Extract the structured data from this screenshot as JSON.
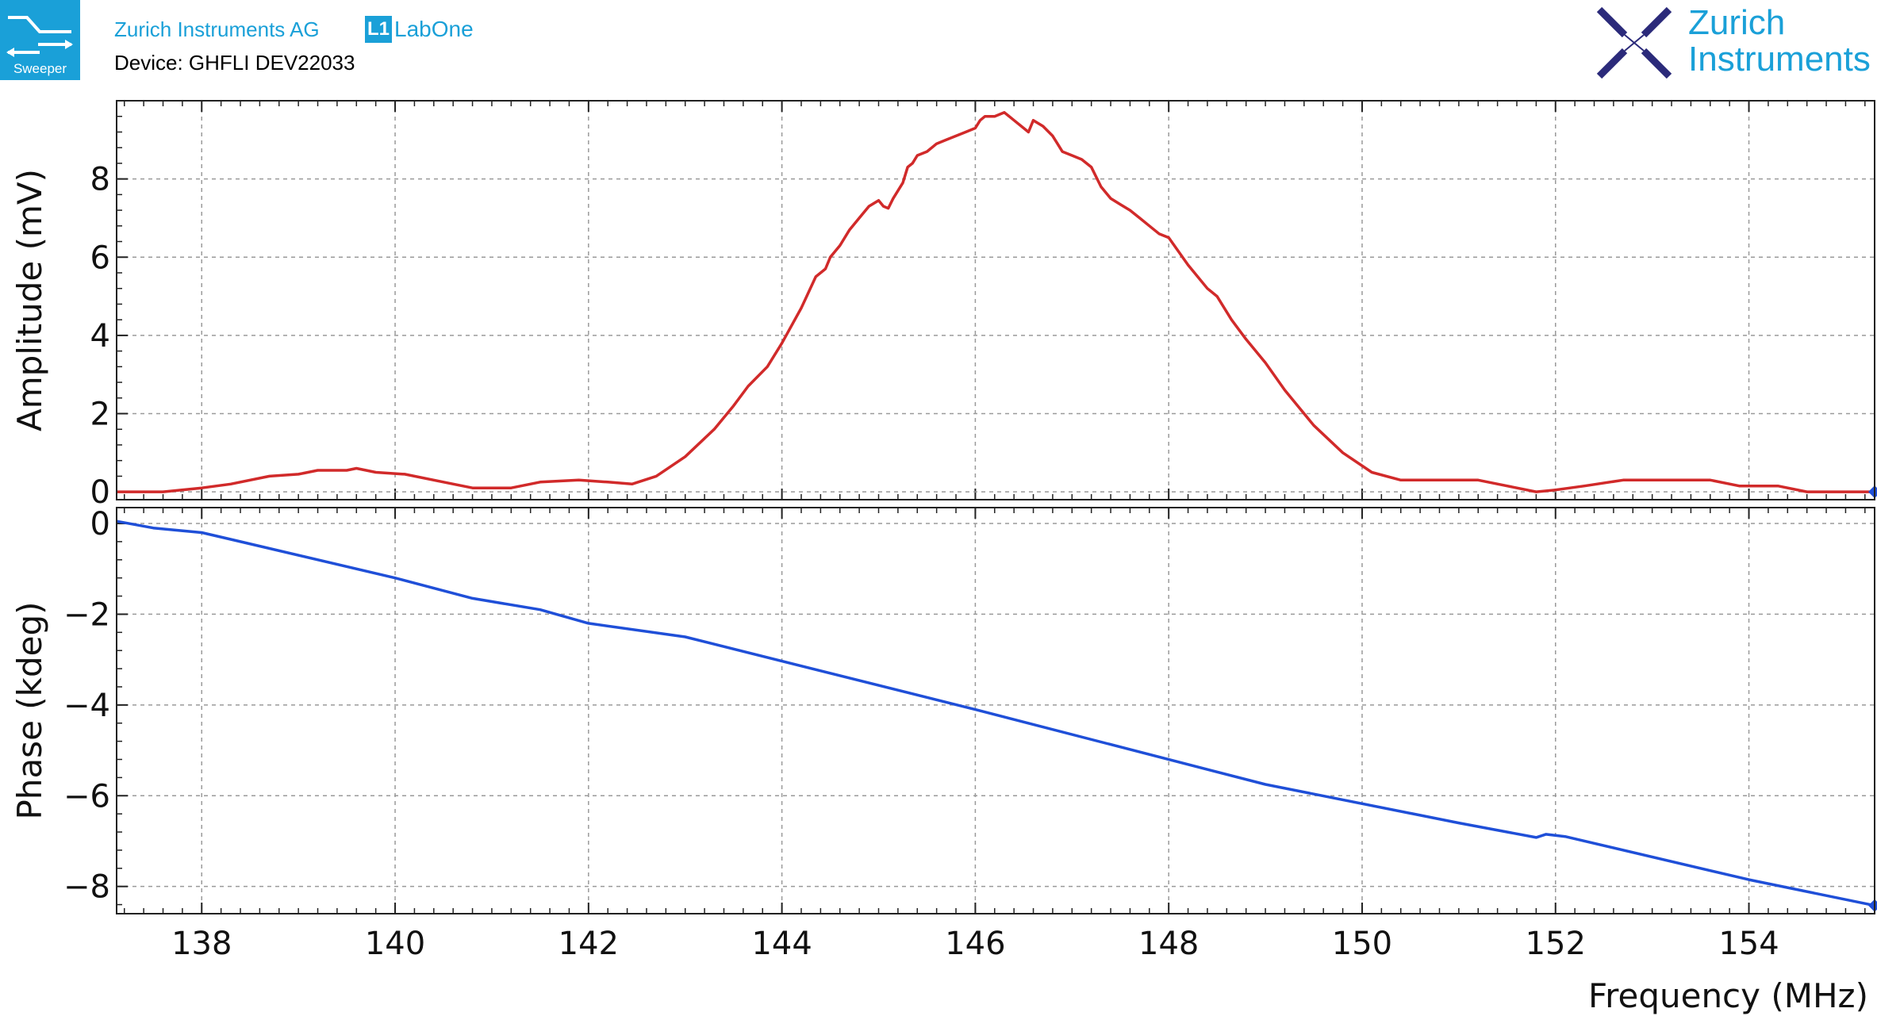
{
  "header": {
    "badge_label": "Sweeper",
    "company": "Zurich Instruments AG",
    "product_mark": "L1",
    "product": "LabOne",
    "device": "Device: GHFLI DEV22033",
    "brand_line1": "Zurich",
    "brand_line2": "Instruments",
    "brand_color": "#1aa0d8",
    "logo_color": "#2b2a7a"
  },
  "chart_data": [
    {
      "type": "line",
      "ylabel": "Amplitude (mV)",
      "xlabel": "",
      "xlim": [
        137.12,
        155.3
      ],
      "ylim": [
        -0.2,
        10.0
      ],
      "xticks": [
        138,
        140,
        142,
        144,
        146,
        148,
        150,
        152,
        154
      ],
      "yticks": [
        0,
        2,
        4,
        6,
        8
      ],
      "grid": true,
      "series": [
        {
          "color": "#d12a2a",
          "x": [
            137.12,
            137.6,
            138.0,
            138.3,
            138.7,
            139.0,
            139.2,
            139.5,
            139.6,
            139.8,
            140.1,
            140.5,
            140.8,
            141.2,
            141.5,
            141.9,
            142.2,
            142.45,
            142.7,
            143.0,
            143.3,
            143.5,
            143.65,
            143.85,
            144.0,
            144.2,
            144.35,
            144.45,
            144.5,
            144.6,
            144.7,
            144.8,
            144.9,
            145.0,
            145.05,
            145.1,
            145.15,
            145.2,
            145.25,
            145.3,
            145.35,
            145.4,
            145.5,
            145.6,
            145.7,
            145.8,
            145.9,
            146.0,
            146.05,
            146.1,
            146.2,
            146.3,
            146.4,
            146.5,
            146.55,
            146.6,
            146.7,
            146.8,
            146.85,
            146.9,
            147.0,
            147.1,
            147.2,
            147.3,
            147.4,
            147.5,
            147.6,
            147.7,
            147.8,
            147.9,
            148.0,
            148.2,
            148.4,
            148.5,
            148.65,
            148.8,
            149.0,
            149.2,
            149.5,
            149.8,
            150.1,
            150.4,
            150.8,
            151.2,
            151.5,
            151.8,
            152.0,
            152.3,
            152.7,
            153.0,
            153.3,
            153.6,
            153.9,
            154.3,
            154.6,
            155.0,
            155.3
          ],
          "y": [
            0.0,
            0.0,
            0.1,
            0.2,
            0.4,
            0.45,
            0.55,
            0.55,
            0.6,
            0.5,
            0.45,
            0.25,
            0.1,
            0.1,
            0.25,
            0.3,
            0.25,
            0.2,
            0.4,
            0.9,
            1.6,
            2.2,
            2.7,
            3.2,
            3.8,
            4.7,
            5.5,
            5.7,
            6.0,
            6.3,
            6.7,
            7.0,
            7.3,
            7.45,
            7.3,
            7.25,
            7.5,
            7.7,
            7.9,
            8.3,
            8.4,
            8.6,
            8.7,
            8.9,
            9.0,
            9.1,
            9.2,
            9.3,
            9.5,
            9.6,
            9.6,
            9.7,
            9.5,
            9.3,
            9.2,
            9.5,
            9.35,
            9.1,
            8.9,
            8.7,
            8.6,
            8.5,
            8.3,
            7.8,
            7.5,
            7.35,
            7.2,
            7.0,
            6.8,
            6.6,
            6.5,
            5.8,
            5.2,
            5.0,
            4.4,
            3.9,
            3.3,
            2.6,
            1.7,
            1.0,
            0.5,
            0.3,
            0.3,
            0.3,
            0.15,
            0.0,
            0.05,
            0.15,
            0.3,
            0.3,
            0.3,
            0.3,
            0.15,
            0.15,
            0.0,
            0.0,
            0.0
          ]
        }
      ]
    },
    {
      "type": "line",
      "ylabel": "Phase (kdeg)",
      "xlabel": "Frequency (MHz)",
      "xlim": [
        137.12,
        155.3
      ],
      "ylim": [
        -8.6,
        0.35
      ],
      "xticks": [
        138,
        140,
        142,
        144,
        146,
        148,
        150,
        152,
        154
      ],
      "yticks": [
        0,
        -2,
        -4,
        -6,
        -8
      ],
      "grid": true,
      "series": [
        {
          "color": "#1f4fd8",
          "x": [
            137.12,
            137.5,
            138.0,
            138.3,
            140.0,
            140.8,
            141.5,
            142.0,
            143.0,
            146.0,
            149.0,
            151.0,
            151.8,
            151.9,
            152.1,
            154.0,
            155.3
          ],
          "y": [
            0.05,
            -0.1,
            -0.2,
            -0.35,
            -1.2,
            -1.65,
            -1.9,
            -2.2,
            -2.5,
            -4.1,
            -5.75,
            -6.6,
            -6.92,
            -6.85,
            -6.9,
            -7.85,
            -8.42
          ]
        }
      ]
    }
  ]
}
